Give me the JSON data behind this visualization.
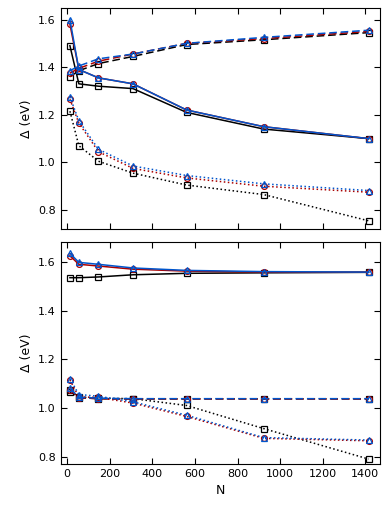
{
  "N": [
    13,
    55,
    147,
    309,
    561,
    923,
    1415
  ],
  "top": {
    "ylim": [
      0.72,
      1.65
    ],
    "yticks": [
      0.8,
      1.0,
      1.2,
      1.4,
      1.6
    ],
    "ylabel": "Δ (eV)",
    "Pd_Ih": [
      1.49,
      1.33,
      1.32,
      1.31,
      1.21,
      1.14,
      1.1
    ],
    "Pd_IDh": [
      1.58,
      1.39,
      1.355,
      1.33,
      1.22,
      1.15,
      1.1
    ],
    "Pd_CO": [
      1.6,
      1.39,
      1.355,
      1.33,
      1.22,
      1.15,
      1.1
    ],
    "Au_Ih": [
      1.36,
      1.385,
      1.415,
      1.445,
      1.495,
      1.515,
      1.545
    ],
    "Au_IDh": [
      1.375,
      1.395,
      1.425,
      1.455,
      1.5,
      1.52,
      1.55
    ],
    "Au_CO": [
      1.385,
      1.405,
      1.435,
      1.455,
      1.5,
      1.525,
      1.555
    ],
    "PCS_Ih": [
      1.215,
      1.07,
      1.005,
      0.955,
      0.905,
      0.865,
      0.755
    ],
    "PCS_IDh": [
      1.265,
      1.165,
      1.045,
      0.975,
      0.935,
      0.9,
      0.875
    ],
    "PCS_CO": [
      1.275,
      1.175,
      1.055,
      0.985,
      0.945,
      0.91,
      0.882
    ]
  },
  "bottom": {
    "ylim": [
      0.77,
      1.68
    ],
    "yticks": [
      0.8,
      1.0,
      1.2,
      1.4,
      1.6
    ],
    "ylabel": "Δ (eV)",
    "Pd_Ih": [
      1.535,
      1.535,
      1.538,
      1.547,
      1.553,
      1.555,
      1.557
    ],
    "Pd_IDh": [
      1.625,
      1.59,
      1.583,
      1.57,
      1.562,
      1.558,
      1.558
    ],
    "Pd_CO": [
      1.635,
      1.598,
      1.59,
      1.575,
      1.565,
      1.56,
      1.558
    ],
    "Au_Ih": [
      1.075,
      1.042,
      1.038,
      1.037,
      1.037,
      1.037,
      1.037
    ],
    "Au_IDh": [
      1.075,
      1.042,
      1.038,
      1.037,
      1.037,
      1.037,
      1.037
    ],
    "Au_CO": [
      1.08,
      1.044,
      1.04,
      1.038,
      1.038,
      1.038,
      1.038
    ],
    "PCS_Ih": [
      1.065,
      1.045,
      1.04,
      1.038,
      1.01,
      0.915,
      0.79
    ],
    "PCS_IDh": [
      1.115,
      1.045,
      1.043,
      1.02,
      0.965,
      0.875,
      0.865
    ],
    "PCS_CO": [
      1.12,
      1.055,
      1.048,
      1.025,
      0.97,
      0.878,
      0.868
    ]
  },
  "colors": {
    "Ih": "#000000",
    "IDh": "#aa0000",
    "CO": "#0055cc"
  },
  "markers": {
    "Ih": "s",
    "IDh": "o",
    "CO": "^"
  },
  "xlabel": "N",
  "figsize": [
    3.92,
    5.07
  ],
  "dpi": 100
}
